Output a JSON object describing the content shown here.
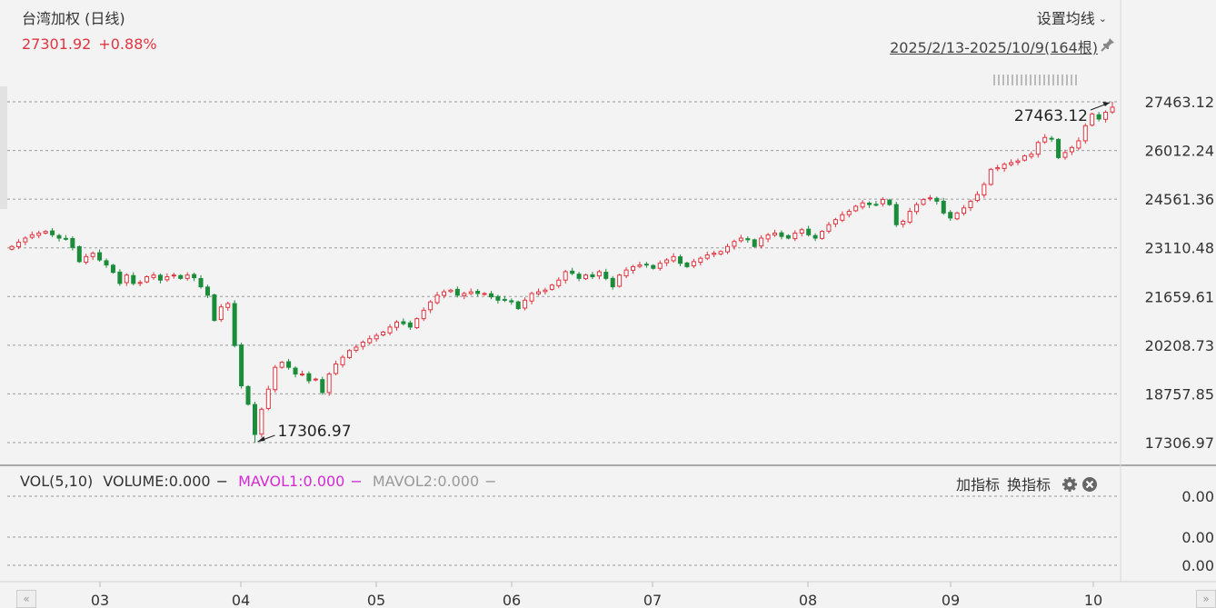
{
  "header": {
    "title": "台湾加权 (日线)",
    "last_price": "27301.92",
    "change_pct": "+0.88%",
    "ma_settings_label": "设置均线",
    "date_range": "2025/2/13-2025/10/9(164根)"
  },
  "volume_panel": {
    "vol_label": "VOL(5,10)",
    "volume_label": "VOLUME:0.000",
    "mavol1_label": "MAVOL1:0.000",
    "mavol2_label": "MAVOL2:0.000",
    "add_indicator": "加指标",
    "switch_indicator": "换指标",
    "ticks": [
      "0.00",
      "0.00",
      "0.00"
    ]
  },
  "colors": {
    "up": "#e0343f",
    "down": "#1a8c3a",
    "mavol1": "#d42ad4",
    "mavol2": "#999999"
  },
  "chart_data": {
    "type": "candlestick",
    "y_ticks": [
      "27463.12",
      "26012.24",
      "24561.36",
      "23110.48",
      "21659.61",
      "20208.73",
      "18757.85",
      "17306.97"
    ],
    "ylim": [
      17306.97,
      27463.12
    ],
    "x_ticks": [
      "03",
      "04",
      "05",
      "06",
      "07",
      "08",
      "09",
      "10"
    ],
    "annotations": {
      "high": "27463.12",
      "low": "17306.97"
    },
    "closes": [
      23150,
      23280,
      23400,
      23500,
      23550,
      23600,
      23500,
      23400,
      23380,
      23120,
      22700,
      22850,
      22950,
      22750,
      22600,
      22380,
      22050,
      22300,
      22050,
      22080,
      22250,
      22300,
      22150,
      22250,
      22300,
      22200,
      22300,
      22220,
      21950,
      21700,
      20950,
      21350,
      21450,
      20200,
      19000,
      18450,
      17550,
      18300,
      18900,
      19550,
      19700,
      19550,
      19350,
      19350,
      19150,
      19200,
      18800,
      19350,
      19650,
      19850,
      20050,
      20150,
      20300,
      20400,
      20500,
      20600,
      20750,
      20900,
      20850,
      20750,
      21000,
      21250,
      21500,
      21700,
      21800,
      21850,
      21700,
      21750,
      21800,
      21750,
      21750,
      21650,
      21550,
      21550,
      21500,
      21300,
      21550,
      21750,
      21800,
      21850,
      22000,
      22150,
      22400,
      22350,
      22200,
      22300,
      22250,
      22400,
      22200,
      21950,
      22300,
      22450,
      22550,
      22600,
      22600,
      22500,
      22650,
      22750,
      22850,
      22650,
      22550,
      22700,
      22800,
      22900,
      22950,
      23000,
      23150,
      23300,
      23400,
      23350,
      23150,
      23400,
      23500,
      23550,
      23450,
      23400,
      23550,
      23650,
      23500,
      23400,
      23600,
      23800,
      23950,
      24100,
      24200,
      24350,
      24450,
      24400,
      24400,
      24550,
      24400,
      23800,
      23900,
      24200,
      24400,
      24550,
      24600,
      24500,
      24150,
      24000,
      24150,
      24300,
      24500,
      24700,
      25000,
      25450,
      25500,
      25600,
      25650,
      25700,
      25850,
      25900,
      26250,
      26400,
      26350,
      25800,
      25950,
      26100,
      26300,
      26750,
      27100,
      26950,
      27150,
      27301.92
    ]
  }
}
